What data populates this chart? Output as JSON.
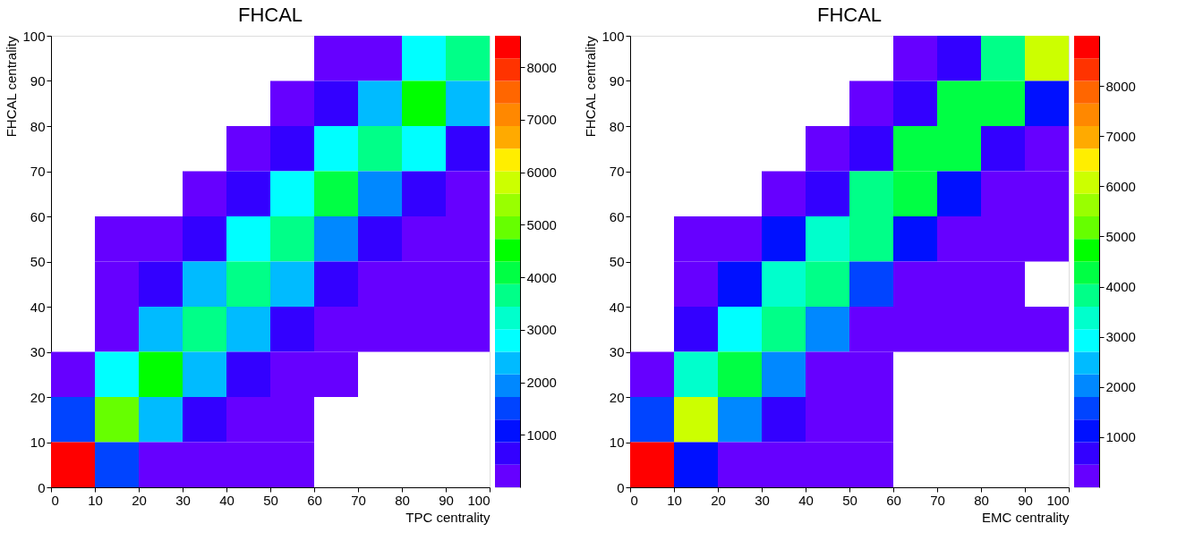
{
  "chart_data": [
    {
      "type": "heatmap",
      "title": "FHCAL",
      "xlabel": "TPC centrality",
      "ylabel": "FHCAL centrality",
      "xlim": [
        0,
        100
      ],
      "ylim": [
        0,
        100
      ],
      "xticks": [
        0,
        10,
        20,
        30,
        40,
        50,
        60,
        70,
        80,
        90,
        100
      ],
      "yticks": [
        0,
        10,
        20,
        30,
        40,
        50,
        60,
        70,
        80,
        90,
        100
      ],
      "clim": [
        0,
        8600
      ],
      "cticks": [
        1000,
        2000,
        3000,
        4000,
        5000,
        6000,
        7000,
        8000
      ],
      "grid": false,
      "cells": [
        [
          null,
          null,
          null,
          null,
          null,
          null,
          200,
          200,
          2800,
          3700
        ],
        [
          null,
          null,
          null,
          null,
          null,
          200,
          600,
          2400,
          4500,
          2400
        ],
        [
          null,
          null,
          null,
          null,
          200,
          600,
          2800,
          3600,
          2800,
          600
        ],
        [
          null,
          null,
          null,
          200,
          600,
          2800,
          4000,
          1900,
          600,
          200
        ],
        [
          null,
          200,
          200,
          600,
          2800,
          3600,
          1900,
          600,
          200,
          200
        ],
        [
          null,
          200,
          600,
          2400,
          3600,
          2400,
          600,
          200,
          200,
          200
        ],
        [
          null,
          200,
          2400,
          3600,
          2400,
          600,
          200,
          200,
          200,
          200
        ],
        [
          200,
          2800,
          4500,
          2400,
          600,
          200,
          200,
          null,
          null,
          null
        ],
        [
          1500,
          5000,
          2400,
          600,
          200,
          200,
          null,
          null,
          null,
          null
        ],
        [
          8400,
          1500,
          200,
          200,
          200,
          200,
          null,
          null,
          null,
          null
        ]
      ]
    },
    {
      "type": "heatmap",
      "title": "FHCAL",
      "xlabel": "EMC centrality",
      "ylabel": "FHCAL centrality",
      "xlim": [
        0,
        100
      ],
      "ylim": [
        0,
        100
      ],
      "xticks": [
        0,
        10,
        20,
        30,
        40,
        50,
        60,
        70,
        80,
        90,
        100
      ],
      "yticks": [
        0,
        10,
        20,
        30,
        40,
        50,
        60,
        70,
        80,
        90,
        100
      ],
      "clim": [
        0,
        9000
      ],
      "cticks": [
        1000,
        2000,
        3000,
        4000,
        5000,
        6000,
        7000,
        8000
      ],
      "grid": false,
      "cells": [
        [
          null,
          null,
          null,
          null,
          null,
          null,
          200,
          650,
          3800,
          6000
        ],
        [
          null,
          null,
          null,
          null,
          null,
          200,
          650,
          4300,
          4300,
          1100
        ],
        [
          null,
          null,
          null,
          null,
          200,
          650,
          4300,
          4300,
          650,
          200
        ],
        [
          null,
          null,
          null,
          200,
          650,
          3800,
          4300,
          1100,
          200,
          200
        ],
        [
          null,
          200,
          200,
          1100,
          3400,
          3800,
          1100,
          200,
          200,
          200
        ],
        [
          null,
          200,
          1100,
          3400,
          3800,
          1500,
          200,
          200,
          200,
          null
        ],
        [
          null,
          650,
          2900,
          3800,
          2000,
          200,
          200,
          200,
          200,
          200
        ],
        [
          200,
          3400,
          4300,
          2000,
          200,
          200,
          null,
          null,
          null,
          null
        ],
        [
          1500,
          6000,
          2000,
          650,
          200,
          200,
          null,
          null,
          null,
          null
        ],
        [
          8800,
          1100,
          200,
          200,
          200,
          200,
          null,
          null,
          null,
          null
        ]
      ]
    }
  ]
}
